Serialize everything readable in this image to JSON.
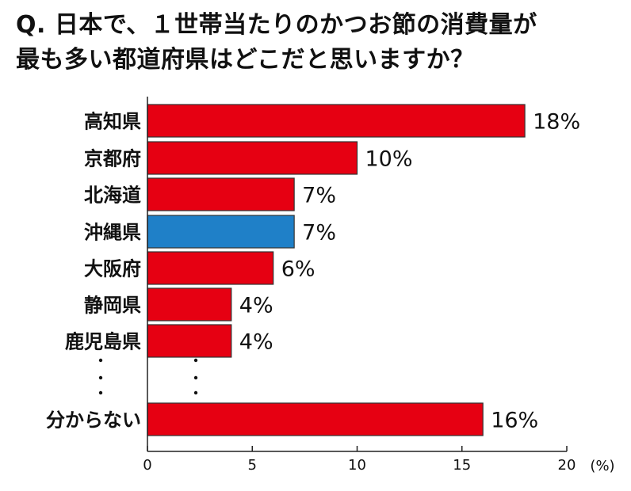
{
  "title": {
    "line1": "Q. 日本で、１世帯当たりのかつお節の消費量が",
    "line2": "最も多い都道府県はどこだと思いますか？"
  },
  "chart_data": {
    "type": "bar",
    "orientation": "horizontal",
    "categories": [
      "高知県",
      "京都府",
      "北海道",
      "沖縄県",
      "大阪府",
      "静岡県",
      "鹿児島県",
      "分からない"
    ],
    "values": [
      18,
      10,
      7,
      7,
      6,
      4,
      4,
      16
    ],
    "value_labels": [
      "18%",
      "10%",
      "7%",
      "7%",
      "6%",
      "4%",
      "4%",
      "16%"
    ],
    "highlight_category": "沖縄県",
    "colors": {
      "bar": "#e60012",
      "highlight": "#1f80c8",
      "outline": "#333333"
    },
    "omitted_marker": "：",
    "xlim": [
      0,
      20
    ],
    "x_ticks": [
      "0",
      "5",
      "10",
      "15",
      "20"
    ],
    "x_unit": "(%)",
    "grid": false,
    "legend": "none"
  }
}
